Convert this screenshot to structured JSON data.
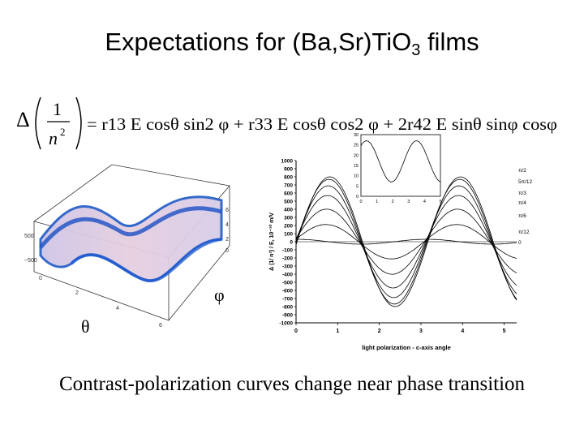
{
  "slide": {
    "title": {
      "main": "Expectations for (Ba,Sr)TiO",
      "sub": "3",
      "tail": " films"
    },
    "caption": "Contrast-polarization curves change near phase transition"
  },
  "equation": {
    "delta": "Δ",
    "numerator": "1",
    "denominator": "n",
    "denominator_exp": "2",
    "rhs": "= r13 E cosθ sin2 φ + r33 E cosθ cos2 φ + 2r42 E sinθ sinφ cosφ"
  },
  "surface_plot": {
    "theta_label": "θ",
    "phi_label": "φ",
    "axis_ticks": [
      "0",
      "2",
      "4",
      "6"
    ],
    "vertical_ticks": [
      "500",
      "−500"
    ],
    "right_ticks": [
      "0",
      "2",
      "4",
      "6"
    ]
  },
  "chart_data": {
    "type": "line",
    "xlabel": "light polarization - c-axis angle",
    "ylabel": "Δ (1/ n²) / E, 10⁻¹⁰ m/V",
    "xlim": [
      0,
      5.3
    ],
    "ylim": [
      -1000,
      1000
    ],
    "x_ticks": [
      "0",
      "1",
      "2",
      "3",
      "4",
      "5"
    ],
    "y_ticks": [
      "1000",
      "900",
      "800",
      "700",
      "600",
      "500",
      "400",
      "300",
      "200",
      "100",
      "0",
      "-100",
      "-200",
      "-300",
      "-400",
      "-500",
      "-600",
      "-700",
      "-800",
      "-900",
      "-1000"
    ],
    "series": [
      {
        "name": "π/2",
        "amplitude": 800,
        "offset": 0
      },
      {
        "name": "5π/12",
        "amplitude": 770,
        "offset": 30
      },
      {
        "name": "π/3",
        "amplitude": 690,
        "offset": 50
      },
      {
        "name": "π/4",
        "amplitude": 570,
        "offset": 60
      },
      {
        "name": "π/6",
        "amplitude": 400,
        "offset": 60
      },
      {
        "name": "π/12",
        "amplitude": 210,
        "offset": 40
      },
      {
        "name": "0",
        "amplitude": 0,
        "offset": 30
      }
    ],
    "inset": {
      "xlim": [
        0,
        5
      ],
      "ylim": [
        0,
        30
      ],
      "x_ticks": [
        "0",
        "1",
        "2",
        "3",
        "4",
        "5"
      ],
      "y_ticks": [
        "30",
        "25",
        "20",
        "15",
        "10",
        "5",
        "0"
      ]
    }
  }
}
